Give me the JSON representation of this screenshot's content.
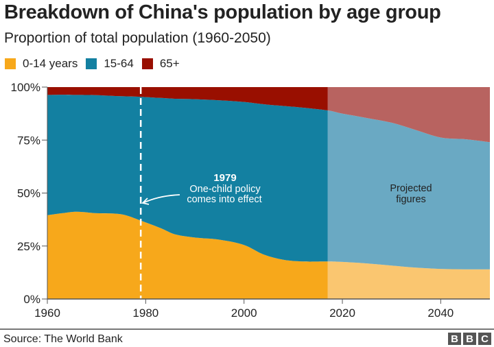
{
  "chart_data": {
    "type": "area",
    "stacked": true,
    "title": "Breakdown of China's population by age group",
    "subtitle": "Proportion of total population (1960-2050)",
    "xlabel": "",
    "ylabel": "",
    "xlim": [
      1960,
      2050
    ],
    "ylim": [
      0,
      100
    ],
    "x_ticks": [
      "1960",
      "1980",
      "2000",
      "2020",
      "2040"
    ],
    "y_ticks": [
      "0%",
      "25%",
      "50%",
      "75%",
      "100%"
    ],
    "legend_position": "top-left",
    "projection_start": 2017,
    "x": [
      1960,
      1963,
      1966,
      1970,
      1975,
      1979,
      1983,
      1986,
      1990,
      1995,
      2000,
      2004,
      2008,
      2012,
      2017,
      2020,
      2025,
      2030,
      2035,
      2040,
      2045,
      2050
    ],
    "series": [
      {
        "name": "0-14 years",
        "color": "#f7a81b",
        "projected_color": "#fac670",
        "values": [
          39.5,
          40.5,
          41.2,
          40.5,
          40.0,
          37.0,
          33.5,
          30.5,
          29.0,
          28.0,
          25.5,
          21.0,
          18.5,
          17.7,
          17.7,
          17.5,
          16.8,
          15.8,
          14.8,
          14.2,
          14.0,
          14.0
        ]
      },
      {
        "name": "15-64",
        "color": "#1380a1",
        "projected_color": "#6aa9c3",
        "values": [
          56.8,
          55.9,
          55.1,
          55.7,
          55.7,
          58.4,
          61.4,
          64.0,
          65.3,
          65.8,
          67.5,
          70.9,
          72.6,
          72.6,
          71.3,
          70.0,
          68.6,
          67.4,
          64.9,
          62.0,
          61.4,
          60.0
        ]
      },
      {
        "name": "65+",
        "color": "#990f00",
        "projected_color": "#b86360",
        "values": [
          3.7,
          3.6,
          3.7,
          3.8,
          4.3,
          4.6,
          5.1,
          5.5,
          5.7,
          6.2,
          7.0,
          8.1,
          8.9,
          9.7,
          11.0,
          12.5,
          14.6,
          16.8,
          20.3,
          23.8,
          24.6,
          26.0
        ]
      }
    ],
    "annotations": [
      {
        "type": "vline",
        "x": 1979,
        "style": "dashed"
      },
      {
        "year_label": "1979",
        "text_line1": "One-child policy",
        "text_line2": "comes into effect"
      },
      {
        "text_line1": "Projected",
        "text_line2": "figures"
      }
    ]
  },
  "legend": {
    "items": [
      {
        "label": "0-14 years",
        "color": "#f7a81b"
      },
      {
        "label": "15-64",
        "color": "#1380a1"
      },
      {
        "label": "65+",
        "color": "#990f00"
      }
    ]
  },
  "footer": {
    "source": "Source: The World Bank",
    "logo_letters": [
      "B",
      "B",
      "C"
    ]
  }
}
